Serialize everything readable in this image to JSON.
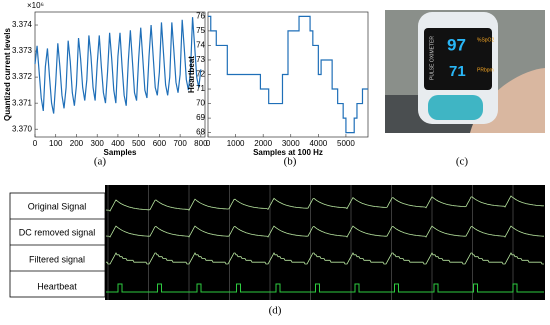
{
  "chart_data": [
    {
      "type": "line",
      "caption": "(a)",
      "x_label": "Samples",
      "y_label": "Quantized current levels",
      "y_multiplier": "×10⁶",
      "color": "#1f6fb8",
      "x": [
        0,
        10,
        20,
        30,
        40,
        50,
        60,
        70,
        80,
        90,
        100,
        110,
        120,
        130,
        140,
        150,
        160,
        170,
        180,
        190,
        200,
        210,
        220,
        230,
        240,
        250,
        260,
        270,
        280,
        290,
        300,
        310,
        320,
        330,
        340,
        350,
        360,
        370,
        380,
        390,
        400,
        410,
        420,
        430,
        440,
        450,
        460,
        470,
        480,
        490,
        500,
        510,
        520,
        530,
        540,
        550,
        560,
        570,
        580,
        590,
        600,
        610,
        620,
        630,
        640,
        650,
        660,
        670,
        680,
        690,
        700,
        710,
        720,
        730,
        740,
        750,
        760,
        770,
        780,
        790,
        800
      ],
      "values": [
        3.3725,
        3.3732,
        3.3722,
        3.3712,
        3.3707,
        3.3724,
        3.3731,
        3.372,
        3.371,
        3.3706,
        3.3718,
        3.3733,
        3.3724,
        3.3713,
        3.3708,
        3.3716,
        3.3734,
        3.3726,
        3.3714,
        3.3709,
        3.3717,
        3.3735,
        3.3727,
        3.3716,
        3.3711,
        3.3719,
        3.3736,
        3.3728,
        3.3716,
        3.3711,
        3.3725,
        3.3736,
        3.3724,
        3.3714,
        3.371,
        3.3722,
        3.3737,
        3.3727,
        3.3715,
        3.371,
        3.3728,
        3.3737,
        3.3724,
        3.3713,
        3.3709,
        3.3726,
        3.3738,
        3.3726,
        3.3714,
        3.3711,
        3.3727,
        3.3739,
        3.3727,
        3.3715,
        3.3712,
        3.3728,
        3.374,
        3.3728,
        3.3716,
        3.3713,
        3.3722,
        3.3741,
        3.3729,
        3.3717,
        3.3713,
        3.372,
        3.3741,
        3.373,
        3.3718,
        3.3714,
        3.3721,
        3.3742,
        3.3731,
        3.3719,
        3.3715,
        3.3722,
        3.3743,
        3.3732,
        3.372,
        3.3716,
        3.3723
      ],
      "xlim": [
        0,
        820
      ],
      "xticks": [
        0,
        100,
        200,
        300,
        400,
        500,
        600,
        700,
        800
      ],
      "ylim": [
        3.3697,
        3.3745
      ],
      "yticks": [
        {
          "value": 3.37,
          "label": "3.370"
        },
        {
          "value": 3.371,
          "label": "3.371"
        },
        {
          "value": 3.372,
          "label": "3.372"
        },
        {
          "value": 3.373,
          "label": "3.373"
        },
        {
          "value": 3.374,
          "label": "3.374"
        }
      ]
    },
    {
      "type": "step",
      "caption": "(b)",
      "x_label": "Samples at 100 Hz",
      "y_label": "Heartbeat",
      "color": "#1f6fb8",
      "x": [
        0,
        100,
        300,
        700,
        1900,
        2200,
        2700,
        2900,
        3300,
        3700,
        3800,
        4000,
        4100,
        4500,
        4700,
        4900,
        5000,
        5300,
        5400,
        5600,
        5800
      ],
      "values": [
        76,
        75,
        74,
        72,
        71,
        70,
        72,
        75,
        76,
        75,
        74,
        72,
        73,
        71,
        70,
        69,
        68,
        69,
        70,
        71,
        71
      ],
      "xlim": [
        0,
        5800
      ],
      "xticks": [
        0,
        1000,
        2000,
        3000,
        4000,
        5000
      ],
      "ylim": [
        67.7,
        76.3
      ],
      "yticks": [
        68,
        69,
        70,
        71,
        72,
        73,
        74,
        75,
        76
      ]
    }
  ],
  "photo": {
    "caption": "(c)",
    "spo2": "97",
    "pulse": "71",
    "spo2_unit": "%SpO2",
    "pulse_unit": "PRbpm",
    "brand": "PULSE OXIMETER"
  },
  "signal_display": {
    "caption": "(d)",
    "rows": [
      "Original Signal",
      "DC removed signal",
      "Filtered signal",
      "Heartbeat"
    ]
  }
}
